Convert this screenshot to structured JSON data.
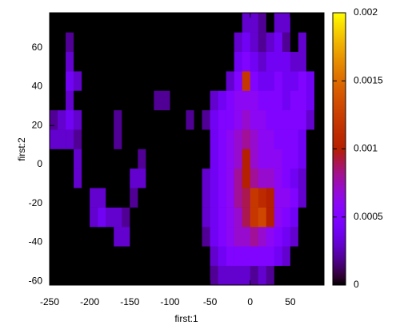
{
  "chart_data": {
    "type": "heatmap",
    "x_label": "first:1",
    "y_label": "first:2",
    "xlim": [
      -250,
      92
    ],
    "ylim": [
      -62,
      78
    ],
    "xticks": [
      -250,
      -200,
      -150,
      -100,
      -50,
      0,
      50
    ],
    "yticks": [
      -60,
      -40,
      -20,
      0,
      20,
      40,
      60
    ],
    "cblim": [
      0,
      0.002
    ],
    "cbticks": [
      0,
      0.0005,
      0.001,
      0.0015,
      0.002
    ],
    "palette": "rgbformulae 7,5,15",
    "background": "#000000",
    "xbins": [
      -250,
      -240,
      -230,
      -220,
      -210,
      -200,
      -190,
      -180,
      -170,
      -160,
      -150,
      -140,
      -130,
      -120,
      -110,
      -100,
      -90,
      -80,
      -70,
      -60,
      -50,
      -40,
      -30,
      -20,
      -10,
      0,
      10,
      20,
      30,
      40,
      50,
      60,
      70,
      80,
      90
    ],
    "ybins": [
      -62,
      -52,
      -42,
      -32,
      -22,
      -12,
      -2,
      8,
      18,
      28,
      38,
      48,
      58,
      68,
      78
    ],
    "z": [
      [
        0,
        0,
        0,
        0,
        0,
        0,
        0,
        0,
        0,
        0,
        0,
        0,
        0,
        0,
        0,
        0,
        0,
        0,
        0,
        0,
        0.0002,
        0.0003,
        0.0003,
        0.0003,
        0.0003,
        0.0002,
        0.0003,
        0.0002,
        0,
        0,
        0,
        0,
        0,
        0
      ],
      [
        0,
        0,
        0,
        0,
        0,
        0,
        0,
        0,
        0,
        0,
        0,
        0,
        0,
        0,
        0,
        0,
        0,
        0,
        0,
        0,
        0.0003,
        0.0004,
        0.0005,
        0.0005,
        0.0005,
        0.0005,
        0.0005,
        0.0005,
        0.0004,
        0.0003,
        0,
        0,
        0,
        0
      ],
      [
        0,
        0,
        0,
        0,
        0,
        0,
        0,
        0,
        0.0003,
        0.0003,
        0,
        0,
        0,
        0,
        0,
        0,
        0,
        0,
        0,
        0.0002,
        0.0004,
        0.0005,
        0.0006,
        0.0007,
        0.0007,
        0.0008,
        0.0007,
        0.0006,
        0.0005,
        0.0004,
        0.0003,
        0,
        0,
        0
      ],
      [
        0,
        0,
        0,
        0,
        0,
        0.0003,
        0.0004,
        0.0003,
        0.0003,
        0.0002,
        0,
        0,
        0,
        0,
        0,
        0,
        0,
        0,
        0,
        0.0003,
        0.0004,
        0.0005,
        0.0006,
        0.0007,
        0.0009,
        0.0012,
        0.0013,
        0.001,
        0.0006,
        0.0005,
        0.0004,
        0,
        0,
        0
      ],
      [
        0,
        0,
        0,
        0,
        0,
        0.0003,
        0.0003,
        0,
        0,
        0,
        0.0002,
        0,
        0,
        0,
        0,
        0,
        0,
        0,
        0,
        0.0003,
        0.0004,
        0.0005,
        0.0006,
        0.0008,
        0.0009,
        0.0012,
        0.0011,
        0.001,
        0.0006,
        0.0006,
        0.0005,
        0.0003,
        0,
        0
      ],
      [
        0,
        0,
        0,
        0.0003,
        0,
        0,
        0,
        0,
        0,
        0,
        0.0003,
        0.0003,
        0,
        0,
        0,
        0,
        0,
        0,
        0,
        0.0003,
        0.0004,
        0.0005,
        0.0006,
        0.0008,
        0.001,
        0.0008,
        0.0007,
        0.0007,
        0.0006,
        0.0005,
        0.0004,
        0.0003,
        0,
        0
      ],
      [
        0,
        0,
        0,
        0.0003,
        0,
        0,
        0,
        0,
        0,
        0,
        0,
        0.0002,
        0,
        0,
        0,
        0,
        0,
        0,
        0,
        0,
        0.0004,
        0.0005,
        0.0006,
        0.0007,
        0.001,
        0.0007,
        0.0006,
        0.0006,
        0.0006,
        0.0005,
        0.0005,
        0.0004,
        0,
        0
      ],
      [
        0.0003,
        0.0003,
        0.0003,
        0.0002,
        0,
        0,
        0,
        0,
        0.0002,
        0,
        0,
        0,
        0,
        0,
        0,
        0,
        0,
        0,
        0,
        0,
        0.0004,
        0.0005,
        0.0006,
        0.0007,
        0.0008,
        0.0007,
        0.0006,
        0.0006,
        0.0005,
        0.0005,
        0.0005,
        0.0004,
        0,
        0
      ],
      [
        0.0002,
        0.0003,
        0.0004,
        0.0003,
        0,
        0,
        0,
        0,
        0.0002,
        0,
        0,
        0,
        0,
        0,
        0,
        0,
        0,
        0.0002,
        0,
        0.0002,
        0.0004,
        0.0005,
        0.0005,
        0.0006,
        0.0007,
        0.0006,
        0.0006,
        0.0005,
        0.0005,
        0.0005,
        0.0005,
        0.0005,
        0.0003,
        0
      ],
      [
        0,
        0,
        0.0003,
        0,
        0,
        0,
        0,
        0,
        0,
        0,
        0,
        0,
        0,
        0.0002,
        0.0002,
        0,
        0,
        0,
        0,
        0,
        0.0003,
        0.0004,
        0.0005,
        0.0006,
        0.0006,
        0.0006,
        0.0005,
        0.0005,
        0.0005,
        0.0004,
        0.0005,
        0.0005,
        0.0004,
        0
      ],
      [
        0,
        0,
        0.0004,
        0.0003,
        0,
        0,
        0,
        0,
        0,
        0,
        0,
        0,
        0,
        0,
        0,
        0,
        0,
        0,
        0,
        0,
        0,
        0,
        0.0003,
        0.0005,
        0.0012,
        0.0005,
        0.0004,
        0.0004,
        0.0005,
        0.0004,
        0.0004,
        0.0005,
        0.0004,
        0
      ],
      [
        0,
        0,
        0.0003,
        0,
        0,
        0,
        0,
        0,
        0,
        0,
        0,
        0,
        0,
        0,
        0,
        0,
        0,
        0,
        0,
        0,
        0,
        0,
        0,
        0.0004,
        0.0005,
        0.0004,
        0.0003,
        0.0004,
        0.0004,
        0.0004,
        0.0003,
        0.0003,
        0,
        0
      ],
      [
        0,
        0,
        0.0002,
        0,
        0,
        0,
        0,
        0,
        0,
        0,
        0,
        0,
        0,
        0,
        0,
        0,
        0,
        0,
        0,
        0,
        0,
        0,
        0,
        0.0003,
        0.0004,
        0.0003,
        0.0002,
        0.0003,
        0.0004,
        0.0002,
        0,
        0.0003,
        0,
        0
      ],
      [
        0,
        0,
        0,
        0,
        0,
        0,
        0,
        0,
        0,
        0,
        0,
        0,
        0,
        0,
        0,
        0,
        0,
        0,
        0,
        0,
        0,
        0,
        0,
        0,
        0.0003,
        0.0003,
        0.0002,
        0,
        0.0003,
        0.0003,
        0,
        0,
        0,
        0
      ]
    ]
  }
}
